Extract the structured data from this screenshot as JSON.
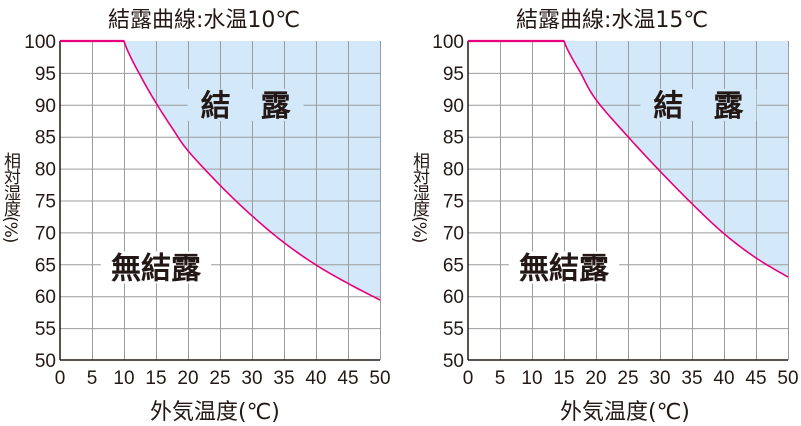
{
  "colors": {
    "curve": "#e6007e",
    "fill": "#d3e8f8",
    "grid": "#9c9c9c",
    "axis": "#231815",
    "text": "#231815"
  },
  "chart_data": [
    {
      "type": "line",
      "title": "結露曲線:水温10℃",
      "xlabel": "外気温度(℃)",
      "ylabel": "相対湿度(%)",
      "xlim": [
        0,
        50
      ],
      "ylim": [
        50,
        100
      ],
      "x_ticks": [
        "0",
        "5",
        "10",
        "15",
        "20",
        "25",
        "30",
        "35",
        "40",
        "45",
        "50"
      ],
      "y_ticks": [
        "50",
        "55",
        "60",
        "65",
        "70",
        "75",
        "80",
        "85",
        "90",
        "95",
        "100"
      ],
      "grid": true,
      "x": [
        0,
        5,
        10,
        12.5,
        15,
        17.5,
        20,
        25,
        30,
        35,
        40,
        45,
        50
      ],
      "series": [
        {
          "name": "結露曲線",
          "values": [
            100,
            100,
            100,
            94.7,
            90.3,
            86.4,
            82.8,
            77.4,
            72.6,
            68.4,
            64.9,
            62.0,
            59.4
          ]
        }
      ],
      "annotations": [
        {
          "text": "結　露",
          "region": "above curve (shaded)",
          "x": 29,
          "y": 90
        },
        {
          "text": "無結露",
          "region": "below curve",
          "x": 15,
          "y": 64.5
        }
      ]
    },
    {
      "type": "line",
      "title": "結露曲線:水温15℃",
      "xlabel": "外気温度(℃)",
      "ylabel": "相対湿度(%)",
      "xlim": [
        0,
        50
      ],
      "ylim": [
        50,
        100
      ],
      "x_ticks": [
        "0",
        "5",
        "10",
        "15",
        "20",
        "25",
        "30",
        "35",
        "40",
        "45",
        "50"
      ],
      "y_ticks": [
        "50",
        "55",
        "60",
        "65",
        "70",
        "75",
        "80",
        "85",
        "90",
        "95",
        "100"
      ],
      "grid": true,
      "x": [
        0,
        5,
        10,
        15,
        17.5,
        20,
        25,
        30,
        35,
        40,
        45,
        50
      ],
      "series": [
        {
          "name": "結露曲線",
          "values": [
            100,
            100,
            100,
            100,
            95.2,
            90.8,
            85.0,
            79.6,
            74.5,
            69.8,
            66.0,
            63.0
          ]
        }
      ],
      "annotations": [
        {
          "text": "結　露",
          "region": "above curve (shaded)",
          "x": 36,
          "y": 90
        },
        {
          "text": "無結露",
          "region": "below curve",
          "x": 15,
          "y": 64.5
        }
      ]
    }
  ],
  "charts": [
    {
      "title": "結露曲線:水温10℃",
      "ylabel": "相対湿度(%)",
      "xlabel": "外気温度(℃)",
      "region_above": "結　露",
      "region_below": "無結露"
    },
    {
      "title": "結露曲線:水温15℃",
      "ylabel": "相対湿度(%)",
      "xlabel": "外気温度(℃)",
      "region_above": "結　露",
      "region_below": "無結露"
    }
  ]
}
